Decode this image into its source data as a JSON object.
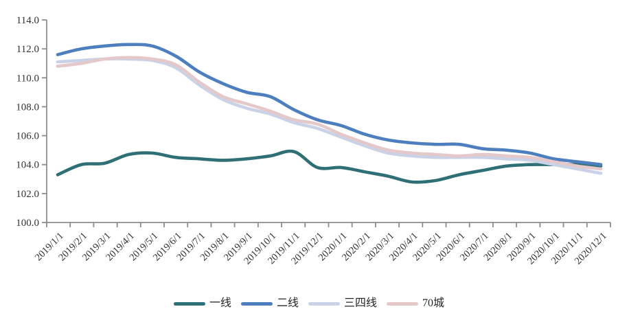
{
  "chart_data": {
    "type": "line",
    "title": "",
    "xlabel": "",
    "ylabel": "",
    "grid": false,
    "legend_position": "bottom",
    "ylim": [
      100.0,
      114.0
    ],
    "ytick_step": 2.0,
    "ytick_labels": [
      "114.0",
      "112.0",
      "110.0",
      "108.0",
      "106.0",
      "104.0",
      "102.0",
      "100.0"
    ],
    "axis_color": "#8c8c8c",
    "label_color": "#333333",
    "categories": [
      "2019/1/1",
      "2019/2/1",
      "2019/3/1",
      "2019/4/1",
      "2019/5/1",
      "2019/6/1",
      "2019/7/1",
      "2019/8/1",
      "2019/9/1",
      "2019/10/1",
      "2019/11/1",
      "2019/12/1",
      "2020/1/1",
      "2020/2/1",
      "2020/3/1",
      "2020/4/1",
      "2020/5/1",
      "2020/6/1",
      "2020/7/1",
      "2020/8/1",
      "2020/9/1",
      "2020/10/1",
      "2020/11/1",
      "2020/12/1"
    ],
    "series": [
      {
        "key": "first-tier",
        "name": "一线",
        "color": "#2f7077",
        "values": [
          103.3,
          104.0,
          104.1,
          104.7,
          104.8,
          104.5,
          104.4,
          104.3,
          104.4,
          104.6,
          104.9,
          103.8,
          103.8,
          103.5,
          103.2,
          102.8,
          102.9,
          103.3,
          103.6,
          103.9,
          104.0,
          104.0,
          104.0,
          103.9
        ]
      },
      {
        "key": "second-tier",
        "name": "二线",
        "color": "#4d7ebe",
        "values": [
          111.6,
          112.0,
          112.2,
          112.3,
          112.2,
          111.5,
          110.4,
          109.6,
          109.0,
          108.7,
          107.8,
          107.1,
          106.7,
          106.1,
          105.7,
          105.5,
          105.4,
          105.4,
          105.1,
          105.0,
          104.8,
          104.4,
          104.2,
          104.0
        ]
      },
      {
        "key": "third-fourth-tier",
        "name": "三四线",
        "color": "#c9d2e6",
        "values": [
          111.1,
          111.2,
          111.3,
          111.3,
          111.2,
          110.7,
          109.5,
          108.5,
          107.9,
          107.5,
          106.9,
          106.5,
          105.9,
          105.3,
          104.8,
          104.6,
          104.5,
          104.5,
          104.5,
          104.4,
          104.3,
          104.0,
          103.7,
          103.4
        ]
      },
      {
        "key": "seventy-cities",
        "name": "70城",
        "color": "#e5c9ca",
        "values": [
          110.8,
          111.0,
          111.3,
          111.4,
          111.3,
          110.9,
          109.7,
          108.7,
          108.2,
          107.7,
          107.1,
          106.8,
          106.1,
          105.5,
          105.0,
          104.8,
          104.7,
          104.6,
          104.7,
          104.6,
          104.5,
          104.2,
          103.9,
          103.7
        ]
      }
    ]
  }
}
